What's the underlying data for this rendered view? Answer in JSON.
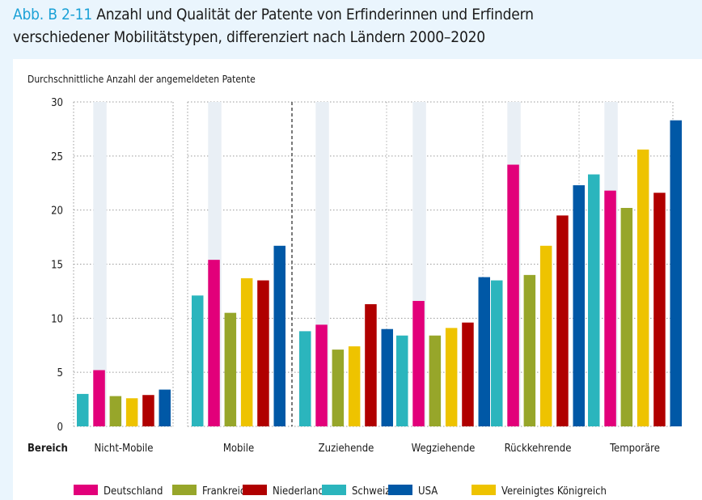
{
  "header": {
    "figure_number": "Abb. B 2-11",
    "title_line1": "Anzahl und Qualität der Patente von Erfinderinnen und Erfindern",
    "title_line2": "verschiedener Mobilitätstypen, differenziert nach Ländern 2000–2020"
  },
  "chart_data": {
    "type": "bar",
    "title": "Anzahl und Qualität der Patente von Erfinderinnen und Erfindern verschiedener Mobilitätstypen, differenziert nach Ländern 2000–2020",
    "ylabel": "Durchschnittliche Anzahl der angemeldeten Patente",
    "xlabel": "Bereich",
    "ylim": [
      0,
      30
    ],
    "yticks": [
      0,
      5,
      10,
      15,
      20,
      25,
      30
    ],
    "grid": true,
    "legend_position": "bottom",
    "categories": [
      "Nicht-Mobile",
      "Mobile",
      "Zuziehende",
      "Wegziehende",
      "Rückkehrende",
      "Temporäre"
    ],
    "series": [
      {
        "name": "Schweiz",
        "color": "#2bb5bd",
        "values": [
          3.0,
          12.1,
          8.8,
          8.4,
          13.5,
          23.3
        ]
      },
      {
        "name": "Deutschland",
        "color": "#e2007a",
        "values": [
          5.2,
          15.4,
          9.4,
          11.6,
          24.2,
          21.8
        ]
      },
      {
        "name": "Frankreich",
        "color": "#97a62a",
        "values": [
          2.8,
          10.5,
          7.1,
          8.4,
          14.0,
          20.2
        ]
      },
      {
        "name": "Vereinigtes Königreich",
        "color": "#eec300",
        "values": [
          2.6,
          13.7,
          7.4,
          9.1,
          16.7,
          25.6
        ]
      },
      {
        "name": "Niederlande",
        "color": "#b00000",
        "values": [
          2.9,
          13.5,
          11.3,
          9.6,
          19.5,
          21.6
        ]
      },
      {
        "name": "USA",
        "color": "#0058a6",
        "values": [
          3.4,
          16.7,
          9.0,
          13.8,
          22.3,
          28.3
        ]
      }
    ],
    "highlight_series": "Deutschland",
    "legend_order": [
      "Deutschland",
      "Frankreich",
      "Niederlande",
      "Schweiz",
      "USA",
      "Vereinigtes Königreich"
    ]
  },
  "colors": {
    "background": "#eaf5fd",
    "accent": "#1ba1d6",
    "highlight_band": "#e9eff5"
  }
}
